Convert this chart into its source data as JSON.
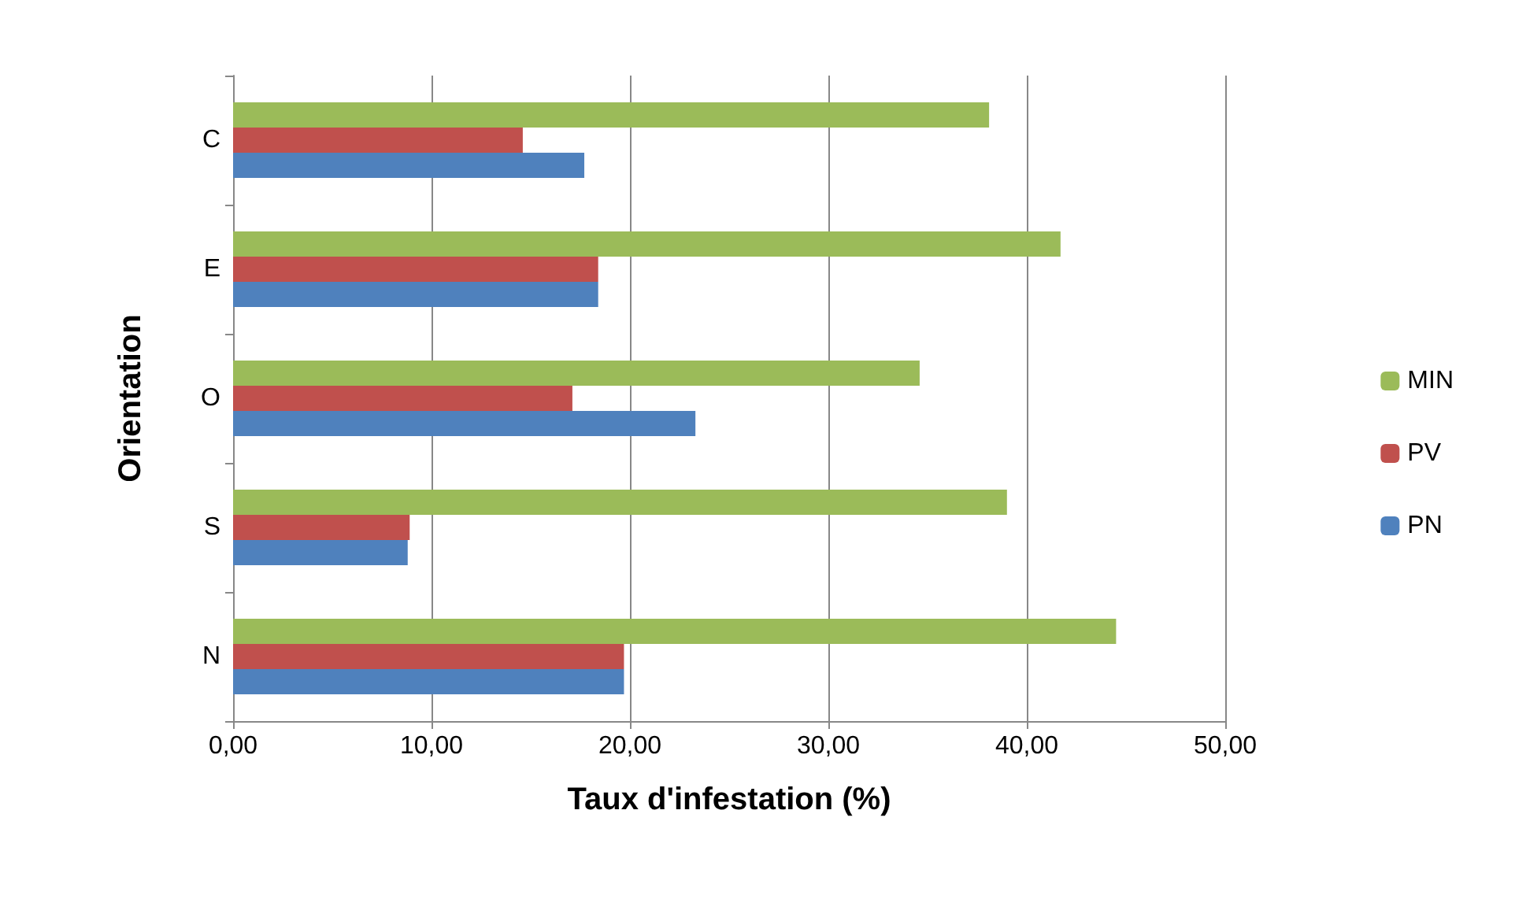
{
  "chart_data": {
    "type": "bar",
    "orientation": "horizontal",
    "xlabel": "Taux d'infestation (%)",
    "ylabel": "Orientation",
    "categories": [
      "C",
      "E",
      "O",
      "S",
      "N"
    ],
    "series": [
      {
        "name": "MIN",
        "color": "#9bbb59",
        "values": [
          38.1,
          41.7,
          34.6,
          39.0,
          44.5
        ]
      },
      {
        "name": "PV",
        "color": "#c0504d",
        "values": [
          14.6,
          18.4,
          17.1,
          8.9,
          19.7
        ]
      },
      {
        "name": "PN",
        "color": "#4f81bd",
        "values": [
          17.7,
          18.4,
          23.3,
          8.8,
          19.7
        ]
      }
    ],
    "xlim": [
      0,
      50
    ],
    "xticks": [
      {
        "value": 0,
        "label": "0,00"
      },
      {
        "value": 10,
        "label": "10,00"
      },
      {
        "value": 20,
        "label": "20,00"
      },
      {
        "value": 30,
        "label": "30,00"
      },
      {
        "value": 40,
        "label": "40,00"
      },
      {
        "value": 50,
        "label": "50,00"
      }
    ],
    "grid": "x",
    "legend": "right"
  }
}
